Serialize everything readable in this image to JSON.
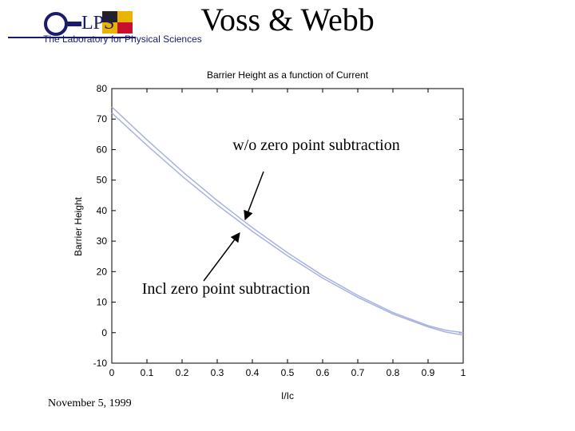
{
  "header": {
    "title": "Voss & Webb",
    "logo_text": "LPS",
    "logo_subtitle": "The Laboratory for Physical Sciences"
  },
  "footer": {
    "date": "November 5, 1999"
  },
  "chart_data": {
    "type": "line",
    "title": "Barrier Height as a function of Current",
    "x_label": "I/Ic",
    "y_label": "Barrier Height",
    "x": [
      0,
      0.1,
      0.2,
      0.3,
      0.4,
      0.5,
      0.6,
      0.7,
      0.8,
      0.9,
      0.95,
      1
    ],
    "series": [
      {
        "name": "w/o zero point subtraction",
        "color": "#aab2e2",
        "values": [
          74,
          63.2,
          52.9,
          43.3,
          34.4,
          26.2,
          18.7,
          12.2,
          6.6,
          2.3,
          0.8,
          0
        ]
      },
      {
        "name": "Incl zero point subtraction",
        "color": "#aab2e2",
        "values": [
          72,
          61.4,
          51.3,
          41.9,
          33.2,
          25.2,
          17.9,
          11.6,
          6.1,
          1.9,
          0.2,
          -0.8
        ]
      }
    ],
    "annotations": [
      "w/o zero point subtraction",
      "Incl zero point subtraction"
    ],
    "xlim": [
      0,
      1
    ],
    "xticks": [
      0,
      0.1,
      0.2,
      0.3,
      0.4,
      0.5,
      0.6,
      0.7,
      0.8,
      0.9,
      1
    ],
    "ylim": [
      -10,
      80
    ],
    "yticks": [
      -10,
      0,
      10,
      20,
      30,
      40,
      50,
      60,
      70,
      80
    ],
    "grid": false
  }
}
